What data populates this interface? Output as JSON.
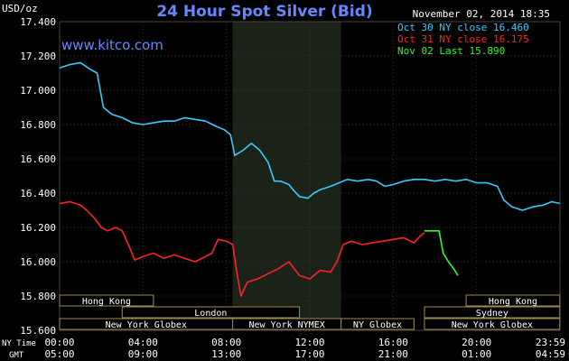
{
  "chart_data": {
    "type": "line",
    "title": "24 Hour Spot Silver (Bid)",
    "unit_label": "USD/oz",
    "site_label": "www.kitco.com",
    "timestamp": "November 02, 2014 18:35",
    "ylim": [
      15.6,
      17.4
    ],
    "y_ticks": [
      "17.400",
      "17.200",
      "17.000",
      "16.800",
      "16.600",
      "16.400",
      "16.200",
      "16.000",
      "15.800",
      "15.600"
    ],
    "xlim": [
      0,
      24
    ],
    "ny_time_label": "NY Time",
    "gmt_label": "GMT",
    "x_ticks_ny": [
      "00:00",
      "04:00",
      "08:00",
      "12:00",
      "16:00",
      "20:00",
      "23:59"
    ],
    "x_ticks_gmt": [
      "05:00",
      "09:00",
      "13:00",
      "17:00",
      "21:00",
      "01:00",
      "04:59"
    ],
    "shaded_region": [
      8.3,
      13.5
    ],
    "legend": [
      {
        "label": "Oct 30 NY close 16.460",
        "color": "#33ccff"
      },
      {
        "label": "Oct 31 NY close 16.175",
        "color": "#ff2222"
      },
      {
        "label": "Nov 02 Last 15.890",
        "color": "#22ff22"
      }
    ],
    "sessions": [
      {
        "name": "Hong Kong",
        "row": 0,
        "start": 0,
        "end": 4.5
      },
      {
        "name": "Hong Kong",
        "row": 0,
        "start": 19.5,
        "end": 23.99
      },
      {
        "name": "London",
        "row": 1,
        "start": 3,
        "end": 11.5
      },
      {
        "name": "Sydney",
        "row": 1,
        "start": 17.5,
        "end": 23.99
      },
      {
        "name": "New York Globex",
        "row": 2,
        "start": 0,
        "end": 8.3
      },
      {
        "name": "New York NYMEX",
        "row": 2,
        "start": 8.3,
        "end": 13.5
      },
      {
        "name": "NY Globex",
        "row": 2,
        "start": 13.5,
        "end": 17
      },
      {
        "name": "New York Globex",
        "row": 2,
        "start": 17.5,
        "end": 23.99
      }
    ],
    "series": [
      {
        "name": "Oct 30",
        "color": "#33ccff",
        "points": [
          [
            0,
            17.13
          ],
          [
            0.5,
            17.15
          ],
          [
            1,
            17.16
          ],
          [
            1.5,
            17.12
          ],
          [
            1.8,
            17.1
          ],
          [
            2.1,
            16.9
          ],
          [
            2.5,
            16.86
          ],
          [
            3,
            16.84
          ],
          [
            3.5,
            16.81
          ],
          [
            4,
            16.8
          ],
          [
            4.5,
            16.81
          ],
          [
            5,
            16.82
          ],
          [
            5.5,
            16.82
          ],
          [
            6,
            16.84
          ],
          [
            6.5,
            16.83
          ],
          [
            7,
            16.82
          ],
          [
            7.5,
            16.79
          ],
          [
            7.9,
            16.77
          ],
          [
            8.2,
            16.74
          ],
          [
            8.4,
            16.62
          ],
          [
            8.8,
            16.65
          ],
          [
            9.2,
            16.69
          ],
          [
            9.6,
            16.65
          ],
          [
            10,
            16.58
          ],
          [
            10.3,
            16.47
          ],
          [
            10.6,
            16.47
          ],
          [
            11,
            16.45
          ],
          [
            11.2,
            16.42
          ],
          [
            11.5,
            16.38
          ],
          [
            11.9,
            16.37
          ],
          [
            12.2,
            16.4
          ],
          [
            12.5,
            16.42
          ],
          [
            13,
            16.44
          ],
          [
            13.4,
            16.46
          ],
          [
            13.8,
            16.48
          ],
          [
            14.3,
            16.47
          ],
          [
            14.8,
            16.48
          ],
          [
            15.2,
            16.47
          ],
          [
            15.6,
            16.44
          ],
          [
            16,
            16.45
          ],
          [
            16.5,
            16.47
          ],
          [
            17,
            16.48
          ],
          [
            17.5,
            16.48
          ],
          [
            18,
            16.47
          ],
          [
            18.5,
            16.48
          ],
          [
            19,
            16.47
          ],
          [
            19.5,
            16.48
          ],
          [
            20,
            16.46
          ],
          [
            20.5,
            16.46
          ],
          [
            21,
            16.44
          ],
          [
            21.3,
            16.36
          ],
          [
            21.7,
            16.32
          ],
          [
            22.2,
            16.3
          ],
          [
            22.7,
            16.32
          ],
          [
            23.2,
            16.33
          ],
          [
            23.6,
            16.35
          ],
          [
            23.99,
            16.34
          ]
        ]
      },
      {
        "name": "Oct 31",
        "color": "#ff2222",
        "points": [
          [
            0,
            16.34
          ],
          [
            0.5,
            16.35
          ],
          [
            1,
            16.33
          ],
          [
            1.3,
            16.3
          ],
          [
            1.7,
            16.25
          ],
          [
            2,
            16.2
          ],
          [
            2.3,
            16.18
          ],
          [
            2.7,
            16.2
          ],
          [
            3,
            16.18
          ],
          [
            3.3,
            16.1
          ],
          [
            3.6,
            16.01
          ],
          [
            4,
            16.03
          ],
          [
            4.5,
            16.05
          ],
          [
            5,
            16.02
          ],
          [
            5.5,
            16.04
          ],
          [
            6,
            16.02
          ],
          [
            6.5,
            16.0
          ],
          [
            7,
            16.03
          ],
          [
            7.3,
            16.05
          ],
          [
            7.6,
            16.13
          ],
          [
            8,
            16.12
          ],
          [
            8.3,
            16.1
          ],
          [
            8.5,
            15.94
          ],
          [
            8.7,
            15.8
          ],
          [
            9,
            15.88
          ],
          [
            9.5,
            15.9
          ],
          [
            10,
            15.93
          ],
          [
            10.5,
            15.96
          ],
          [
            11,
            16.0
          ],
          [
            11.5,
            15.92
          ],
          [
            12,
            15.9
          ],
          [
            12.5,
            15.95
          ],
          [
            13,
            15.94
          ],
          [
            13.3,
            16.0
          ],
          [
            13.6,
            16.1
          ],
          [
            14,
            16.12
          ],
          [
            14.5,
            16.1
          ],
          [
            15,
            16.11
          ],
          [
            15.5,
            16.12
          ],
          [
            16,
            16.13
          ],
          [
            16.5,
            16.14
          ],
          [
            17,
            16.11
          ],
          [
            17.3,
            16.15
          ],
          [
            17.5,
            16.17
          ]
        ]
      },
      {
        "name": "Nov 02",
        "color": "#22ff22",
        "points": [
          [
            17.5,
            16.18
          ],
          [
            18.2,
            16.18
          ],
          [
            18.4,
            16.05
          ],
          [
            18.7,
            15.99
          ],
          [
            18.9,
            15.96
          ],
          [
            19.1,
            15.92
          ]
        ]
      }
    ]
  }
}
